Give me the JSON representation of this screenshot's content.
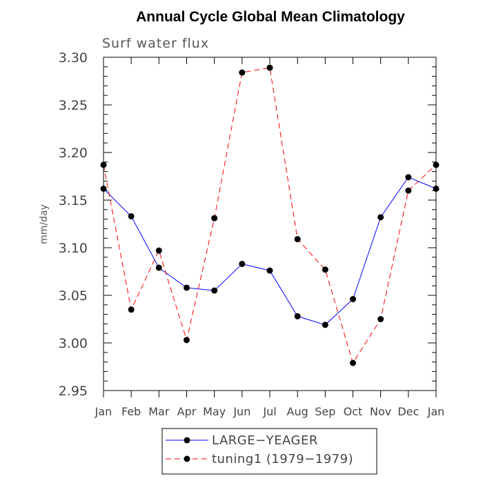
{
  "chart_data": {
    "type": "line",
    "title": "Annual Cycle Global Mean Climatology",
    "subtitle": "Surf water flux",
    "ylabel": "mm/day",
    "xlabel": "",
    "ylim": [
      2.95,
      3.3
    ],
    "yticks": [
      2.95,
      3.0,
      3.05,
      3.1,
      3.15,
      3.2,
      3.25,
      3.3
    ],
    "ytick_labels": [
      "2.95",
      "3.00",
      "3.05",
      "3.10",
      "3.15",
      "3.20",
      "3.25",
      "3.30"
    ],
    "categories": [
      "Jan",
      "Feb",
      "Mar",
      "Apr",
      "May",
      "Jun",
      "Jul",
      "Aug",
      "Sep",
      "Oct",
      "Nov",
      "Dec",
      "Jan"
    ],
    "series": [
      {
        "name": "LARGE−YEAGER",
        "color": "#0000ff",
        "dashed": false,
        "values": [
          3.162,
          3.133,
          3.079,
          3.058,
          3.055,
          3.083,
          3.076,
          3.028,
          3.019,
          3.046,
          3.132,
          3.174,
          3.162
        ]
      },
      {
        "name": "tuning1 (1979−1979)",
        "color": "#ff0000",
        "dashed": true,
        "values": [
          3.187,
          3.035,
          3.097,
          3.003,
          3.131,
          3.284,
          3.289,
          3.109,
          3.077,
          2.979,
          3.025,
          3.16,
          3.187
        ]
      }
    ],
    "legend_position": "bottom-center",
    "grid": false
  }
}
